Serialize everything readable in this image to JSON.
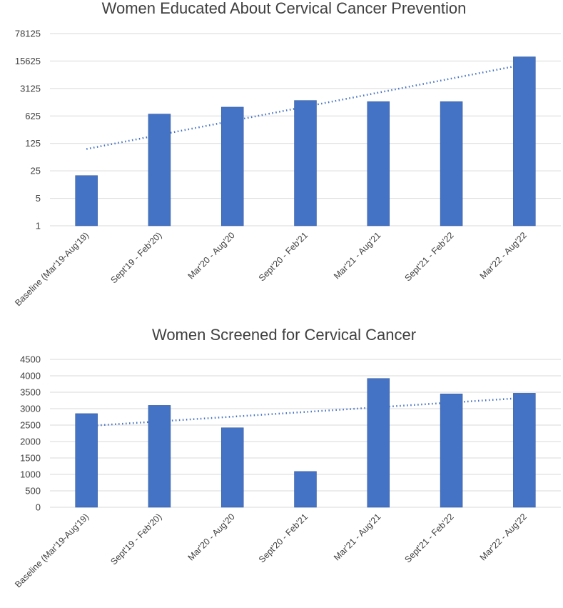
{
  "chart_data": [
    {
      "type": "bar",
      "title": "Women Educated About Cervical Cancer Prevention",
      "xlabel": "",
      "ylabel": "",
      "yscale": "log",
      "ylim": [
        1,
        78125
      ],
      "yticks": [
        "1",
        "5",
        "25",
        "125",
        "625",
        "3125",
        "15625",
        "78125"
      ],
      "categories": [
        "Baseline (Mar'19-Aug'19)",
        "Sept'19 - Feb'20)",
        "Mar'20 - Aug'20",
        "Sept'20 - Feb'21",
        "Mar'21 - Aug'21",
        "Sept'21 - Feb'22",
        "Mar'22 - Aug'22"
      ],
      "series": [
        {
          "values": [
            19,
            700,
            1050,
            1550,
            1450,
            1450,
            20000
          ],
          "color": "#4472c4"
        }
      ],
      "trendline": {
        "type": "exponential",
        "start": 90,
        "end": 12800
      },
      "grid": true,
      "legend": "none"
    },
    {
      "type": "bar",
      "title": "Women Screened for Cervical Cancer",
      "xlabel": "",
      "ylabel": "",
      "yscale": "linear",
      "ylim": [
        0,
        4500
      ],
      "yticks": [
        "0",
        "500",
        "1000",
        "1500",
        "2000",
        "2500",
        "3000",
        "3500",
        "4000",
        "4500"
      ],
      "categories": [
        "Baseline (Mar'19-Aug'19)",
        "Sept'19 - Feb'20)",
        "Mar'20 - Aug'20",
        "Sept'20 - Feb'21",
        "Mar'21 - Aug'21",
        "Sept'21 - Feb'22",
        "Mar'22 - Aug'22"
      ],
      "series": [
        {
          "values": [
            2850,
            3100,
            2420,
            1090,
            3920,
            3450,
            3470
          ],
          "color": "#4472c4"
        }
      ],
      "trendline": {
        "type": "linear",
        "start": 2470,
        "end": 3330
      },
      "grid": true,
      "legend": "none"
    }
  ]
}
